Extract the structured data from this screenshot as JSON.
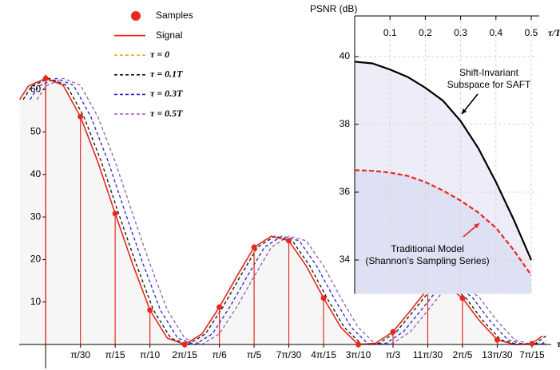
{
  "chart_data": {
    "type": "line",
    "xlabel": "τ",
    "xlim": [
      -0.08,
      1.5
    ],
    "ylim": [
      -3,
      65
    ],
    "yticks": [
      10,
      20,
      30,
      40,
      50,
      60
    ],
    "xticks": [
      {
        "value": 0.1047,
        "label": "π/30"
      },
      {
        "value": 0.2094,
        "label": "π/15"
      },
      {
        "value": 0.3142,
        "label": "π/10"
      },
      {
        "value": 0.4189,
        "label": "2π/15"
      },
      {
        "value": 0.5236,
        "label": "π/6"
      },
      {
        "value": 0.6283,
        "label": "π/5"
      },
      {
        "value": 0.733,
        "label": "7π/30"
      },
      {
        "value": 0.8378,
        "label": "4π/15"
      },
      {
        "value": 0.9425,
        "label": "3π/10"
      },
      {
        "value": 1.0472,
        "label": "π/3"
      },
      {
        "value": 1.1519,
        "label": "11π/30"
      },
      {
        "value": 1.2566,
        "label": "2π/5"
      },
      {
        "value": 1.3614,
        "label": "13π/30"
      },
      {
        "value": 1.4661,
        "label": "7π/15"
      }
    ],
    "samples": {
      "name": "Samples",
      "color": "#e8281e",
      "x": [
        0,
        0.1047,
        0.2094,
        0.3142,
        0.4189,
        0.5236,
        0.6283,
        0.733,
        0.8378,
        0.9425,
        1.0472,
        1.1519,
        1.2566,
        1.3614,
        1.4661
      ],
      "values": [
        62.6,
        53.6,
        30.8,
        8.1,
        0,
        8.8,
        22.9,
        24.4,
        10.9,
        0,
        3,
        13.1,
        10.9,
        1.1,
        0.2
      ]
    },
    "signal": {
      "name": "Signal",
      "color": "#e8281e",
      "x": [
        -0.0785,
        -0.0524,
        0,
        0.0524,
        0.1047,
        0.1571,
        0.2094,
        0.2618,
        0.3142,
        0.3665,
        0.4189,
        0.4712,
        0.5236,
        0.576,
        0.6283,
        0.6807,
        0.733,
        0.7854,
        0.8378,
        0.8901,
        0.9425,
        0.9948,
        1.0472,
        1.0996,
        1.1519,
        1.2043,
        1.2566,
        1.309,
        1.3614,
        1.4137,
        1.4661,
        1.4975
      ],
      "values": [
        57.6,
        60.8,
        62.6,
        61,
        53.6,
        43,
        30.8,
        19,
        8.1,
        1.5,
        0,
        2.5,
        8.8,
        16,
        22.9,
        25.5,
        24.4,
        18.5,
        10.9,
        4,
        0,
        0.3,
        3,
        8,
        13.1,
        14.2,
        10.9,
        5.5,
        1.1,
        0,
        0.2,
        2
      ]
    },
    "series": [
      {
        "name": "τ = 0",
        "color": "#f5a623",
        "tau_T": 0
      },
      {
        "name": "τ = 0.1T",
        "color": "#111111",
        "tau_T": 0.1
      },
      {
        "name": "τ = 0.3T",
        "color": "#2424d0",
        "tau_T": 0.3
      },
      {
        "name": "τ = 0.5T",
        "color": "#9a58b0",
        "tau_T": 0.5
      }
    ],
    "inset": {
      "type": "line",
      "xlabel": "τ/T",
      "ylabel": "PSNR (dB)",
      "xlim": [
        0,
        0.5
      ],
      "ylim": [
        33,
        41.2
      ],
      "xticks": [
        0.1,
        0.2,
        0.3,
        0.4,
        0.5
      ],
      "yticks": [
        34,
        36,
        38,
        40
      ],
      "grid": true,
      "x": [
        0,
        0.05,
        0.1,
        0.15,
        0.2,
        0.25,
        0.3,
        0.35,
        0.4,
        0.45,
        0.5
      ],
      "series": [
        {
          "annotation": [
            "Shift-Invariant",
            "Subspace for SAFT"
          ],
          "color": "#000000",
          "fill": "#e8e9f8",
          "values": [
            39.85,
            39.8,
            39.62,
            39.4,
            39.08,
            38.7,
            38.1,
            37.3,
            36.3,
            35.2,
            34.0
          ]
        },
        {
          "annotation": [
            "Traditional Model",
            "(Shannon’s Sampling Series)"
          ],
          "color": "#e8281e",
          "fill": "#d9ddf3",
          "values": [
            36.65,
            36.63,
            36.58,
            36.48,
            36.3,
            36.05,
            35.75,
            35.4,
            34.95,
            34.3,
            33.55
          ]
        }
      ]
    }
  }
}
